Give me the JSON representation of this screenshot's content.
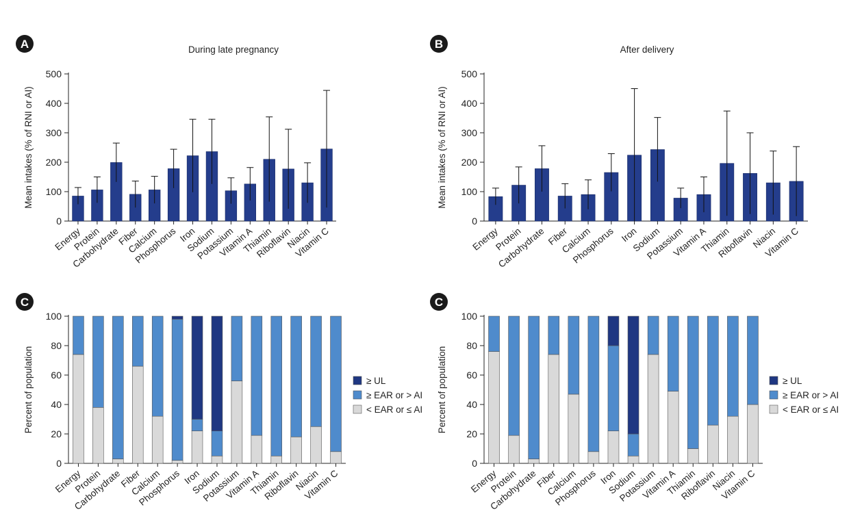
{
  "colors": {
    "bar_dark": "#243d8c",
    "ul": "#1f3782",
    "ear": "#4f8bcc",
    "below": "#d9d9d9",
    "axis": "#222222",
    "badge": "#1a1a1a"
  },
  "chart_data": [
    {
      "panel": "A",
      "type": "bar",
      "title": "During late pregnancy",
      "ylabel": "Mean intakes (% of RNI or AI)",
      "ylim": [
        0,
        500
      ],
      "yticks": [
        0,
        100,
        200,
        300,
        400,
        500
      ],
      "grid": false,
      "categories": [
        "Energy",
        "Protein",
        "Carbohydrate",
        "Fiber",
        "Calcium",
        "Phosphorus",
        "Iron",
        "Sodium",
        "Potassium",
        "Vitamin A",
        "Thiamin",
        "Riboflavin",
        "Niacin",
        "Vitamin C"
      ],
      "values": [
        85,
        106,
        199,
        91,
        106,
        178,
        222,
        236,
        103,
        126,
        210,
        177,
        130,
        245
      ],
      "error_upper": [
        114,
        150,
        265,
        136,
        152,
        244,
        346,
        346,
        147,
        182,
        354,
        312,
        198,
        444
      ],
      "error_lower": [
        57,
        62,
        133,
        46,
        60,
        112,
        98,
        126,
        59,
        70,
        66,
        42,
        62,
        46
      ]
    },
    {
      "panel": "B",
      "type": "bar",
      "title": "After delivery",
      "ylabel": "Mean intakes (% of RNI or AI)",
      "ylim": [
        0,
        500
      ],
      "yticks": [
        0,
        100,
        200,
        300,
        400,
        500
      ],
      "grid": false,
      "categories": [
        "Energy",
        "Protein",
        "Carbohydrate",
        "Fiber",
        "Calcium",
        "Phosphorus",
        "Iron",
        "Sodium",
        "Potassium",
        "Vitamin A",
        "Thiamin",
        "Riboflavin",
        "Niacin",
        "Vitamin C"
      ],
      "values": [
        83,
        122,
        178,
        85,
        90,
        165,
        224,
        243,
        78,
        90,
        196,
        162,
        130,
        135
      ],
      "error_upper": [
        112,
        184,
        256,
        127,
        140,
        229,
        450,
        352,
        112,
        150,
        374,
        300,
        238,
        253
      ],
      "error_lower": [
        55,
        60,
        100,
        43,
        40,
        101,
        0,
        134,
        44,
        30,
        18,
        24,
        22,
        17
      ]
    },
    {
      "panel": "C",
      "type": "bar",
      "stacked": true,
      "ylabel": "Percent of population",
      "ylim": [
        0,
        100
      ],
      "yticks": [
        0,
        20,
        40,
        60,
        80,
        100
      ],
      "grid": false,
      "legend": "right",
      "categories": [
        "Energy",
        "Protein",
        "Carbohydrate",
        "Fiber",
        "Calcium",
        "Phosphorus",
        "Iron",
        "Sodium",
        "Potassium",
        "Vitamin A",
        "Thiamin",
        "Riboflavin",
        "Niacin",
        "Vitamin C"
      ],
      "series": [
        {
          "name": "< EAR or ≤ AI",
          "values": [
            74,
            38,
            3,
            66,
            32,
            2,
            22,
            5,
            56,
            19,
            5,
            18,
            25,
            8
          ]
        },
        {
          "name": "≥ EAR or > AI",
          "values": [
            26,
            62,
            97,
            34,
            68,
            96,
            8,
            17,
            44,
            81,
            95,
            82,
            75,
            92
          ]
        },
        {
          "name": "≥ UL",
          "values": [
            0,
            0,
            0,
            0,
            0,
            2,
            70,
            78,
            0,
            0,
            0,
            0,
            0,
            0
          ]
        }
      ]
    },
    {
      "panel": "C",
      "type": "bar",
      "stacked": true,
      "ylabel": "Percent of population",
      "ylim": [
        0,
        100
      ],
      "yticks": [
        0,
        20,
        40,
        60,
        80,
        100
      ],
      "grid": false,
      "legend": "right",
      "categories": [
        "Energy",
        "Protein",
        "Carbohydrate",
        "Fiber",
        "Calcium",
        "Phosphorus",
        "Iron",
        "Sodium",
        "Potassium",
        "Vitamin A",
        "Thiamin",
        "Riboflavin",
        "Niacin",
        "Vitamin C"
      ],
      "series": [
        {
          "name": "< EAR or ≤ AI",
          "values": [
            76,
            19,
            3,
            74,
            47,
            8,
            22,
            5,
            74,
            49,
            10,
            26,
            32,
            40
          ]
        },
        {
          "name": "≥ EAR or > AI",
          "values": [
            24,
            81,
            97,
            26,
            53,
            92,
            58,
            15,
            26,
            51,
            90,
            74,
            68,
            60
          ]
        },
        {
          "name": "≥ UL",
          "values": [
            0,
            0,
            0,
            0,
            0,
            0,
            20,
            80,
            0,
            0,
            0,
            0,
            0,
            0
          ]
        }
      ]
    }
  ]
}
